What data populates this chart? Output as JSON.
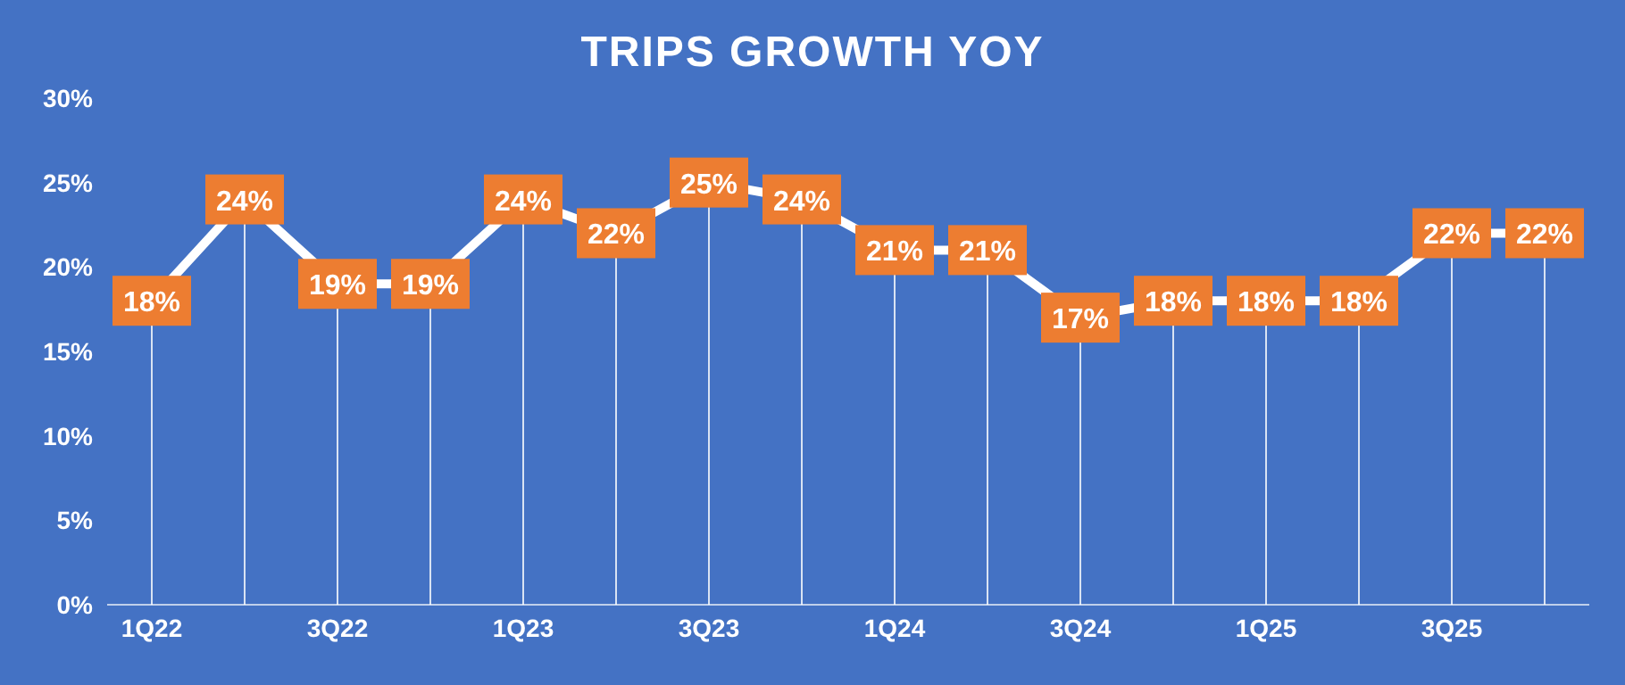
{
  "chart_data": {
    "type": "line",
    "title": "TRIPS GROWTH YOY",
    "categories": [
      "1Q22",
      null,
      "3Q22",
      null,
      "1Q23",
      null,
      "3Q23",
      null,
      "1Q24",
      null,
      "3Q24",
      null,
      "1Q25",
      null,
      "3Q25",
      null
    ],
    "series": [
      {
        "color": "#ffffff",
        "values": [
          18,
          24,
          19,
          19,
          24,
          22,
          25,
          24,
          21,
          21,
          17,
          18,
          18,
          18,
          22,
          22
        ],
        "value_labels": [
          "18%",
          "24%",
          "19%",
          "19%",
          "24%",
          "22%",
          "25%",
          "24%",
          "21%",
          "21%",
          "17%",
          "18%",
          "18%",
          "18%",
          "22%",
          "22%"
        ]
      }
    ],
    "ylim": [
      0,
      30
    ],
    "yticks": [
      {
        "value": 0,
        "label": "0%"
      },
      {
        "value": 5,
        "label": "5%"
      },
      {
        "value": 10,
        "label": "10%"
      },
      {
        "value": 15,
        "label": "15%"
      },
      {
        "value": 20,
        "label": "20%"
      },
      {
        "value": 25,
        "label": "25%"
      },
      {
        "value": 30,
        "label": "30%"
      }
    ],
    "grid": "x",
    "legend": false,
    "marker": "square",
    "line_style": "solid"
  }
}
